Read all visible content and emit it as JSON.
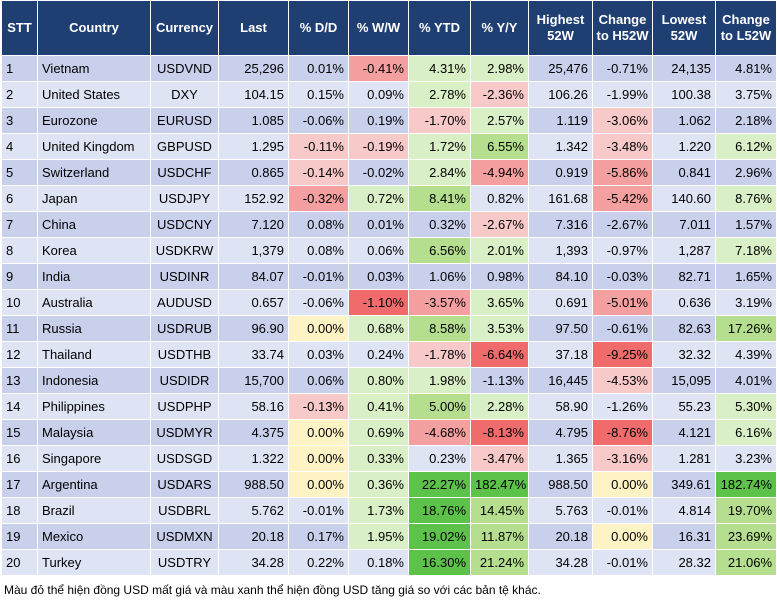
{
  "table": {
    "header": [
      "STT",
      "Country",
      "Currency",
      "Last",
      "% D/D",
      "% W/W",
      "% YTD",
      "% Y/Y",
      "Highest 52W",
      "Change to H52W",
      "Lowest 52W",
      "Change to L52W"
    ],
    "rows": [
      [
        "1",
        "Vietnam",
        "USDVND",
        "25,296",
        "0.01%",
        "-0.41%",
        "4.31%",
        "2.98%",
        "25,476",
        "-0.71%",
        "24,135",
        "4.81%"
      ],
      [
        "2",
        "United States",
        "DXY",
        "104.15",
        "0.15%",
        "0.09%",
        "2.78%",
        "-2.36%",
        "106.26",
        "-1.99%",
        "100.38",
        "3.75%"
      ],
      [
        "3",
        "Eurozone",
        "EURUSD",
        "1.085",
        "-0.06%",
        "0.19%",
        "-1.70%",
        "2.57%",
        "1.119",
        "-3.06%",
        "1.062",
        "2.18%"
      ],
      [
        "4",
        "United Kingdom",
        "GBPUSD",
        "1.295",
        "-0.11%",
        "-0.19%",
        "1.72%",
        "6.55%",
        "1.342",
        "-3.48%",
        "1.220",
        "6.12%"
      ],
      [
        "5",
        "Switzerland",
        "USDCHF",
        "0.865",
        "-0.14%",
        "-0.02%",
        "2.84%",
        "-4.94%",
        "0.919",
        "-5.86%",
        "0.841",
        "2.96%"
      ],
      [
        "6",
        "Japan",
        "USDJPY",
        "152.92",
        "-0.32%",
        "0.72%",
        "8.41%",
        "0.82%",
        "161.68",
        "-5.42%",
        "140.60",
        "8.76%"
      ],
      [
        "7",
        "China",
        "USDCNY",
        "7.120",
        "0.08%",
        "0.01%",
        "0.32%",
        "-2.67%",
        "7.316",
        "-2.67%",
        "7.011",
        "1.57%"
      ],
      [
        "8",
        "Korea",
        "USDKRW",
        "1,379",
        "0.08%",
        "0.06%",
        "6.56%",
        "2.01%",
        "1,393",
        "-0.97%",
        "1,287",
        "7.18%"
      ],
      [
        "9",
        "India",
        "USDINR",
        "84.07",
        "-0.01%",
        "0.03%",
        "1.06%",
        "0.98%",
        "84.10",
        "-0.03%",
        "82.71",
        "1.65%"
      ],
      [
        "10",
        "Australia",
        "AUDUSD",
        "0.657",
        "-0.06%",
        "-1.10%",
        "-3.57%",
        "3.65%",
        "0.691",
        "-5.01%",
        "0.636",
        "3.19%"
      ],
      [
        "11",
        "Russia",
        "USDRUB",
        "96.90",
        "0.00%",
        "0.68%",
        "8.58%",
        "3.53%",
        "97.50",
        "-0.61%",
        "82.63",
        "17.26%"
      ],
      [
        "12",
        "Thailand",
        "USDTHB",
        "33.74",
        "0.03%",
        "0.24%",
        "-1.78%",
        "-6.64%",
        "37.18",
        "-9.25%",
        "32.32",
        "4.39%"
      ],
      [
        "13",
        "Indonesia",
        "USDIDR",
        "15,700",
        "0.06%",
        "0.80%",
        "1.98%",
        "-1.13%",
        "16,445",
        "-4.53%",
        "15,095",
        "4.01%"
      ],
      [
        "14",
        "Philippines",
        "USDPHP",
        "58.16",
        "-0.13%",
        "0.41%",
        "5.00%",
        "2.28%",
        "58.90",
        "-1.26%",
        "55.23",
        "5.30%"
      ],
      [
        "15",
        "Malaysia",
        "USDMYR",
        "4.375",
        "0.00%",
        "0.69%",
        "-4.68%",
        "-8.13%",
        "4.795",
        "-8.76%",
        "4.121",
        "6.16%"
      ],
      [
        "16",
        "Singapore",
        "USDSGD",
        "1.322",
        "0.00%",
        "0.33%",
        "0.23%",
        "-3.47%",
        "1.365",
        "-3.16%",
        "1.281",
        "3.23%"
      ],
      [
        "17",
        "Argentina",
        "USDARS",
        "988.50",
        "0.00%",
        "0.36%",
        "22.27%",
        "182.47%",
        "988.50",
        "0.00%",
        "349.61",
        "182.74%"
      ],
      [
        "18",
        "Brazil",
        "USDBRL",
        "5.762",
        "-0.01%",
        "1.73%",
        "18.76%",
        "14.45%",
        "5.763",
        "-0.01%",
        "4.814",
        "19.70%"
      ],
      [
        "19",
        "Mexico",
        "USDMXN",
        "20.18",
        "0.17%",
        "1.95%",
        "19.02%",
        "11.87%",
        "20.18",
        "0.00%",
        "16.31",
        "23.69%"
      ],
      [
        "20",
        "Turkey",
        "USDTRY",
        "34.28",
        "0.22%",
        "0.18%",
        "16.30%",
        "21.24%",
        "34.28",
        "-0.01%",
        "28.32",
        "21.06%"
      ]
    ]
  },
  "note": "Màu đỏ thể hiện đồng USD mất giá và màu xanh thể hiện đồng USD tăng giá so với các bản tệ khác."
}
